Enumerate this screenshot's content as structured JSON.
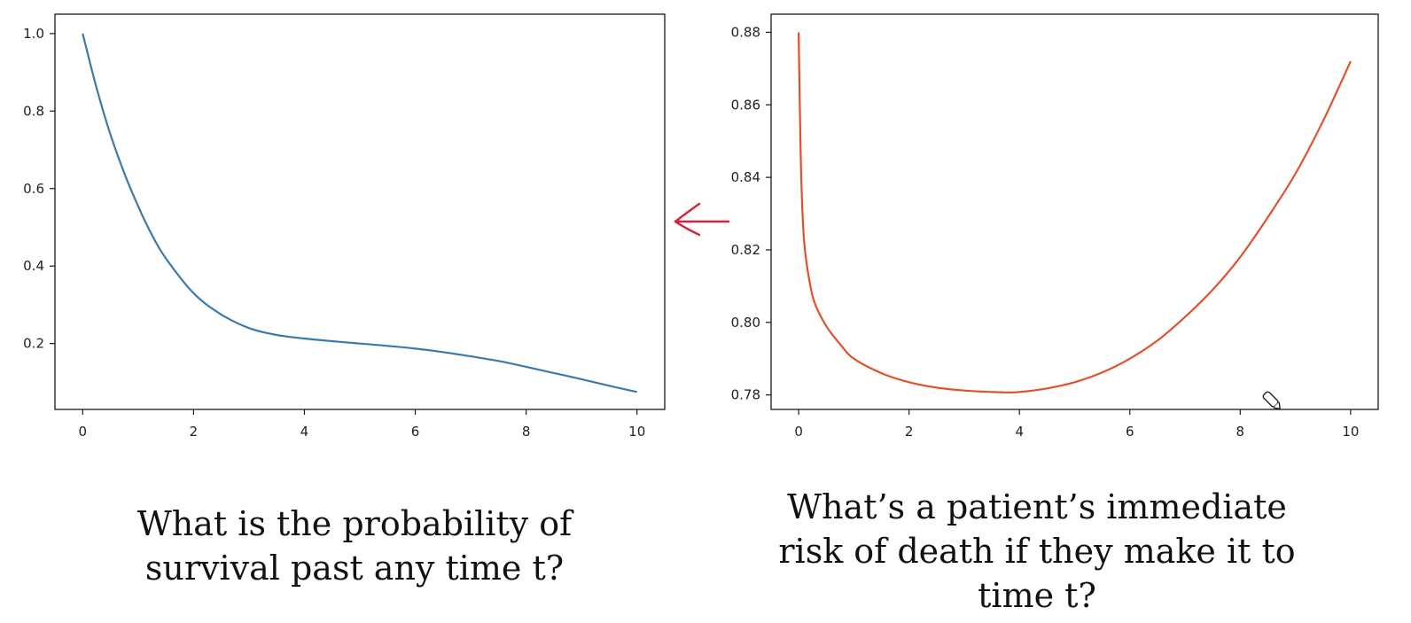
{
  "chart_data": [
    {
      "type": "line",
      "x_ticks": [
        "0",
        "2",
        "4",
        "6",
        "8",
        "10"
      ],
      "y_ticks": [
        "0.2",
        "0.4",
        "0.6",
        "0.8",
        "1.0"
      ],
      "xlim": [
        -0.5,
        10.5
      ],
      "ylim": [
        0.03,
        1.05
      ],
      "grid": false,
      "color": "#3a7bad",
      "series": [
        {
          "x": [
            0,
            0.25,
            0.5,
            0.75,
            1,
            1.25,
            1.5,
            2,
            2.5,
            3,
            3.5,
            4,
            4.5,
            5,
            5.5,
            6,
            6.5,
            7,
            7.5,
            8,
            8.5,
            9,
            9.5,
            10
          ],
          "y": [
            1.0,
            0.86,
            0.74,
            0.64,
            0.555,
            0.48,
            0.42,
            0.33,
            0.275,
            0.24,
            0.222,
            0.213,
            0.206,
            0.2,
            0.194,
            0.187,
            0.178,
            0.167,
            0.155,
            0.14,
            0.124,
            0.108,
            0.091,
            0.075
          ]
        }
      ]
    },
    {
      "type": "line",
      "x_ticks": [
        "0",
        "2",
        "4",
        "6",
        "8",
        "10"
      ],
      "y_ticks": [
        "0.78",
        "0.80",
        "0.82",
        "0.84",
        "0.86",
        "0.88"
      ],
      "xlim": [
        -0.5,
        10.5
      ],
      "ylim": [
        0.776,
        0.885
      ],
      "grid": false,
      "color": "#e0512c",
      "series": [
        {
          "x": [
            0,
            0.02,
            0.05,
            0.1,
            0.2,
            0.3,
            0.5,
            0.75,
            1,
            1.5,
            2,
            2.5,
            3,
            3.5,
            3.75,
            4,
            4.5,
            5,
            5.5,
            6,
            6.5,
            7,
            7.5,
            8,
            8.5,
            9,
            9.5,
            10
          ],
          "y": [
            0.88,
            0.86,
            0.838,
            0.822,
            0.811,
            0.805,
            0.799,
            0.794,
            0.79,
            0.786,
            0.7835,
            0.782,
            0.7812,
            0.7808,
            0.7807,
            0.7808,
            0.7818,
            0.7835,
            0.7862,
            0.79,
            0.795,
            0.8015,
            0.809,
            0.818,
            0.829,
            0.841,
            0.8555,
            0.872
          ]
        }
      ]
    }
  ],
  "captions": {
    "left": [
      "What is the probability of",
      "survival past any time t?"
    ],
    "right": [
      "What’s a patient’s immediate",
      "risk of death if they make it to",
      "time t?"
    ]
  },
  "annotation": {
    "arrow_color": "#d6223a",
    "arrow_direction": "left",
    "cursor_icon": "pencil-icon"
  }
}
